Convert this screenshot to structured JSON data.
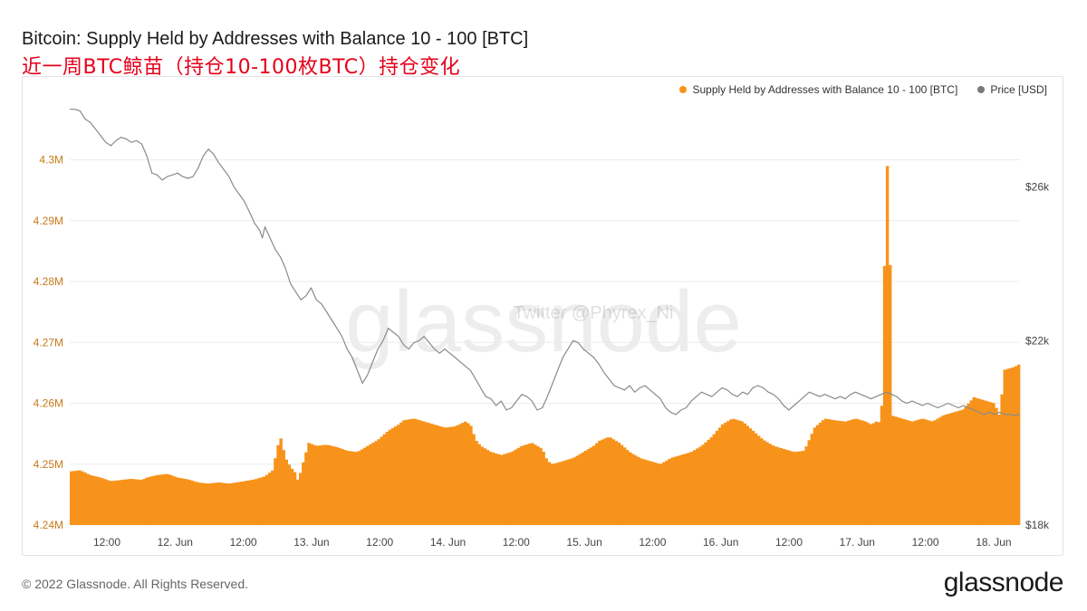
{
  "header": {
    "title": "Bitcoin: Supply Held by Addresses with Balance 10 - 100 [BTC]",
    "overlay_caption": "近一周BTC鲸苗（持仓10-100枚BTC）持仓变化"
  },
  "legend": {
    "supply_label": "Supply Held by Addresses with Balance 10 - 100 [BTC]",
    "price_label": "Price [USD]"
  },
  "watermark": {
    "brand": "glassnode",
    "handle": "Twitter @Phyrex_Ni"
  },
  "footer": {
    "copyright": "© 2022 Glassnode. All Rights Reserved.",
    "logo": "glassnode"
  },
  "colors": {
    "supply": "#f7931a",
    "price": "#8a8a8a",
    "left_axis_text": "#c87a1a",
    "grid": "#ececec"
  },
  "chart_data": {
    "type": "bar",
    "x_ticks": [
      "12:00",
      "12. Jun",
      "12:00",
      "13. Jun",
      "12:00",
      "14. Jun",
      "12:00",
      "15. Jun",
      "12:00",
      "16. Jun",
      "12:00",
      "17. Jun",
      "12:00",
      "18. Jun"
    ],
    "x_range_hours": [
      0,
      168
    ],
    "left_axis": {
      "label": "Supply Held by Addresses with Balance 10 - 100 [BTC]",
      "ylim": [
        4.24,
        4.3099
      ],
      "ticks": [
        4.24,
        4.25,
        4.26,
        4.27,
        4.28,
        4.29,
        4.3
      ],
      "tick_labels": [
        "4.24M",
        "4.25M",
        "4.26M",
        "4.27M",
        "4.28M",
        "4.29M",
        "4.3M"
      ]
    },
    "right_axis": {
      "label": "Price [USD]",
      "scale": "log",
      "ylim": [
        18000,
        28600
      ],
      "ticks": [
        18000,
        22000,
        26000
      ],
      "tick_labels": [
        "$18k",
        "$22k",
        "$26k"
      ]
    },
    "series": [
      {
        "name": "Supply Held by Addresses with Balance 10 - 100 [BTC]",
        "kind": "bar",
        "points": [
          [
            0,
            4.2488
          ],
          [
            4,
            4.249
          ],
          [
            8,
            4.2482
          ],
          [
            12,
            4.2478
          ],
          [
            16,
            4.2472
          ],
          [
            20,
            4.2474
          ],
          [
            24,
            4.2476
          ],
          [
            28,
            4.2474
          ],
          [
            30,
            4.2478
          ],
          [
            34,
            4.2482
          ],
          [
            38,
            4.2484
          ],
          [
            42,
            4.2478
          ],
          [
            46,
            4.2475
          ],
          [
            50,
            4.247
          ],
          [
            54,
            4.2468
          ],
          [
            58,
            4.247
          ],
          [
            62,
            4.2468
          ],
          [
            65,
            4.247
          ],
          [
            68,
            4.2472
          ],
          [
            72,
            4.2475
          ],
          [
            76,
            4.248
          ],
          [
            79,
            4.249
          ],
          [
            81,
            4.253
          ],
          [
            82,
            4.2545
          ],
          [
            84,
            4.251
          ],
          [
            86,
            4.2495
          ],
          [
            88,
            4.2485
          ],
          [
            89,
            4.247
          ],
          [
            90,
            4.249
          ],
          [
            92,
            4.252
          ],
          [
            93,
            4.2535
          ],
          [
            96,
            4.253
          ],
          [
            100,
            4.2532
          ],
          [
            104,
            4.2528
          ],
          [
            108,
            4.2522
          ],
          [
            112,
            4.252
          ],
          [
            116,
            4.253
          ],
          [
            120,
            4.254
          ],
          [
            124,
            4.2555
          ],
          [
            128,
            4.2565
          ],
          [
            130,
            4.2572
          ],
          [
            134,
            4.2575
          ],
          [
            138,
            4.257
          ],
          [
            142,
            4.2565
          ],
          [
            146,
            4.256
          ],
          [
            150,
            4.2562
          ],
          [
            154,
            4.257
          ],
          [
            156,
            4.2565
          ],
          [
            158,
            4.254
          ],
          [
            160,
            4.253
          ],
          [
            162,
            4.2525
          ],
          [
            164,
            4.252
          ],
          [
            168,
            4.2515
          ],
          [
            172,
            4.252
          ],
          [
            176,
            4.253
          ],
          [
            180,
            4.2535
          ],
          [
            184,
            4.2525
          ],
          [
            186,
            4.2505
          ],
          [
            188,
            4.25
          ],
          [
            192,
            4.2505
          ],
          [
            196,
            4.251
          ],
          [
            200,
            4.252
          ],
          [
            204,
            4.253
          ],
          [
            206,
            4.2538
          ],
          [
            210,
            4.2545
          ],
          [
            214,
            4.2535
          ],
          [
            218,
            4.252
          ],
          [
            222,
            4.251
          ],
          [
            226,
            4.2505
          ],
          [
            230,
            4.25
          ],
          [
            234,
            4.251
          ],
          [
            238,
            4.2515
          ],
          [
            242,
            4.252
          ],
          [
            246,
            4.253
          ],
          [
            250,
            4.2545
          ],
          [
            254,
            4.2565
          ],
          [
            258,
            4.2575
          ],
          [
            262,
            4.257
          ],
          [
            266,
            4.2555
          ],
          [
            270,
            4.254
          ],
          [
            274,
            4.253
          ],
          [
            278,
            4.2525
          ],
          [
            282,
            4.252
          ],
          [
            286,
            4.2522
          ],
          [
            290,
            4.256
          ],
          [
            294,
            4.2575
          ],
          [
            298,
            4.2572
          ],
          [
            302,
            4.257
          ],
          [
            306,
            4.2575
          ],
          [
            310,
            4.257
          ],
          [
            312,
            4.2565
          ],
          [
            314,
            4.257
          ],
          [
            316,
            4.2568
          ],
          [
            318,
            4.299
          ],
          [
            319,
            4.299
          ],
          [
            320,
            4.258
          ],
          [
            324,
            4.2575
          ],
          [
            328,
            4.257
          ],
          [
            332,
            4.2575
          ],
          [
            336,
            4.257
          ],
          [
            340,
            4.258
          ],
          [
            344,
            4.2585
          ],
          [
            348,
            4.259
          ],
          [
            352,
            4.261
          ],
          [
            356,
            4.2605
          ],
          [
            360,
            4.26
          ],
          [
            362,
            4.258
          ],
          [
            364,
            4.2655
          ],
          [
            368,
            4.266
          ],
          [
            370,
            4.2665
          ]
        ]
      },
      {
        "name": "Price [USD]",
        "kind": "line",
        "points": [
          [
            0,
            28300
          ],
          [
            2,
            28300
          ],
          [
            4,
            28250
          ],
          [
            6,
            28000
          ],
          [
            8,
            27900
          ],
          [
            10,
            27700
          ],
          [
            12,
            27500
          ],
          [
            14,
            27300
          ],
          [
            16,
            27200
          ],
          [
            18,
            27350
          ],
          [
            20,
            27450
          ],
          [
            22,
            27400
          ],
          [
            24,
            27300
          ],
          [
            26,
            27350
          ],
          [
            28,
            27250
          ],
          [
            30,
            26900
          ],
          [
            32,
            26400
          ],
          [
            34,
            26350
          ],
          [
            36,
            26200
          ],
          [
            38,
            26300
          ],
          [
            40,
            26350
          ],
          [
            42,
            26400
          ],
          [
            44,
            26300
          ],
          [
            46,
            26250
          ],
          [
            48,
            26300
          ],
          [
            50,
            26550
          ],
          [
            52,
            26900
          ],
          [
            54,
            27100
          ],
          [
            56,
            26950
          ],
          [
            58,
            26700
          ],
          [
            60,
            26500
          ],
          [
            62,
            26300
          ],
          [
            64,
            26000
          ],
          [
            66,
            25800
          ],
          [
            68,
            25600
          ],
          [
            70,
            25300
          ],
          [
            72,
            25000
          ],
          [
            74,
            24800
          ],
          [
            75,
            24600
          ],
          [
            76,
            24900
          ],
          [
            78,
            24600
          ],
          [
            80,
            24300
          ],
          [
            82,
            24100
          ],
          [
            84,
            23800
          ],
          [
            86,
            23400
          ],
          [
            88,
            23200
          ],
          [
            90,
            23000
          ],
          [
            92,
            23100
          ],
          [
            94,
            23300
          ],
          [
            96,
            23000
          ],
          [
            98,
            22900
          ],
          [
            100,
            22700
          ],
          [
            102,
            22500
          ],
          [
            104,
            22300
          ],
          [
            106,
            22100
          ],
          [
            108,
            21800
          ],
          [
            110,
            21600
          ],
          [
            112,
            21300
          ],
          [
            114,
            21000
          ],
          [
            116,
            21200
          ],
          [
            118,
            21500
          ],
          [
            120,
            21800
          ],
          [
            122,
            22000
          ],
          [
            124,
            22300
          ],
          [
            126,
            22200
          ],
          [
            128,
            22100
          ],
          [
            130,
            21900
          ],
          [
            132,
            21800
          ],
          [
            134,
            21950
          ],
          [
            136,
            22000
          ],
          [
            138,
            22100
          ],
          [
            140,
            21950
          ],
          [
            142,
            21800
          ],
          [
            144,
            21700
          ],
          [
            146,
            21800
          ],
          [
            148,
            21700
          ],
          [
            150,
            21600
          ],
          [
            152,
            21500
          ],
          [
            154,
            21400
          ],
          [
            156,
            21300
          ],
          [
            158,
            21100
          ],
          [
            160,
            20900
          ],
          [
            162,
            20700
          ],
          [
            164,
            20650
          ],
          [
            166,
            20500
          ],
          [
            168,
            20600
          ],
          [
            170,
            20400
          ],
          [
            172,
            20450
          ],
          [
            174,
            20600
          ],
          [
            176,
            20750
          ],
          [
            178,
            20700
          ],
          [
            180,
            20600
          ],
          [
            182,
            20400
          ],
          [
            184,
            20450
          ],
          [
            186,
            20700
          ],
          [
            188,
            21000
          ],
          [
            190,
            21300
          ],
          [
            192,
            21600
          ],
          [
            194,
            21800
          ],
          [
            196,
            22000
          ],
          [
            198,
            21950
          ],
          [
            200,
            21800
          ],
          [
            202,
            21700
          ],
          [
            204,
            21600
          ],
          [
            206,
            21450
          ],
          [
            208,
            21250
          ],
          [
            210,
            21100
          ],
          [
            212,
            20950
          ],
          [
            214,
            20900
          ],
          [
            216,
            20850
          ],
          [
            218,
            20950
          ],
          [
            220,
            20800
          ],
          [
            222,
            20900
          ],
          [
            224,
            20950
          ],
          [
            226,
            20850
          ],
          [
            228,
            20750
          ],
          [
            230,
            20650
          ],
          [
            232,
            20450
          ],
          [
            234,
            20350
          ],
          [
            236,
            20300
          ],
          [
            238,
            20400
          ],
          [
            240,
            20450
          ],
          [
            242,
            20600
          ],
          [
            244,
            20700
          ],
          [
            246,
            20800
          ],
          [
            248,
            20750
          ],
          [
            250,
            20700
          ],
          [
            252,
            20800
          ],
          [
            254,
            20900
          ],
          [
            256,
            20850
          ],
          [
            258,
            20750
          ],
          [
            260,
            20700
          ],
          [
            262,
            20800
          ],
          [
            264,
            20750
          ],
          [
            266,
            20900
          ],
          [
            268,
            20950
          ],
          [
            270,
            20900
          ],
          [
            272,
            20800
          ],
          [
            274,
            20750
          ],
          [
            276,
            20650
          ],
          [
            278,
            20500
          ],
          [
            280,
            20400
          ],
          [
            282,
            20500
          ],
          [
            284,
            20600
          ],
          [
            286,
            20700
          ],
          [
            288,
            20800
          ],
          [
            290,
            20750
          ],
          [
            292,
            20700
          ],
          [
            294,
            20750
          ],
          [
            296,
            20700
          ],
          [
            298,
            20650
          ],
          [
            300,
            20700
          ],
          [
            302,
            20650
          ],
          [
            304,
            20750
          ],
          [
            306,
            20800
          ],
          [
            308,
            20750
          ],
          [
            310,
            20700
          ],
          [
            312,
            20650
          ],
          [
            314,
            20700
          ],
          [
            316,
            20750
          ],
          [
            318,
            20800
          ],
          [
            320,
            20750
          ],
          [
            322,
            20700
          ],
          [
            324,
            20600
          ],
          [
            326,
            20550
          ],
          [
            328,
            20600
          ],
          [
            330,
            20550
          ],
          [
            332,
            20500
          ],
          [
            334,
            20550
          ],
          [
            336,
            20500
          ],
          [
            338,
            20450
          ],
          [
            340,
            20500
          ],
          [
            342,
            20550
          ],
          [
            344,
            20500
          ],
          [
            346,
            20450
          ],
          [
            348,
            20500
          ],
          [
            350,
            20450
          ],
          [
            352,
            20400
          ],
          [
            354,
            20350
          ],
          [
            356,
            20300
          ],
          [
            358,
            20350
          ],
          [
            360,
            20300
          ],
          [
            362,
            20350
          ],
          [
            364,
            20300
          ],
          [
            366,
            20300
          ],
          [
            368,
            20280
          ],
          [
            370,
            20300
          ]
        ]
      }
    ],
    "x_span": [
      0,
      370
    ],
    "grid": "horizontal",
    "legend_position": "top-right"
  }
}
